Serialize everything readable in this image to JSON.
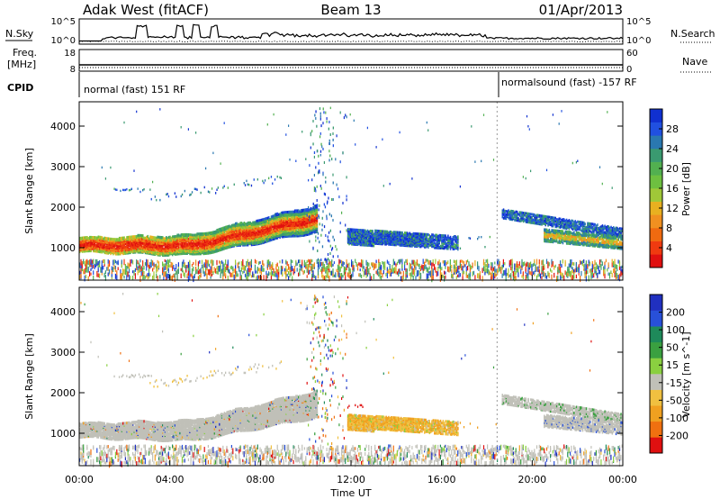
{
  "header": {
    "station": "Adak West (fitACF)",
    "beam": "Beam 13",
    "date": "01/Apr/2013"
  },
  "strip": {
    "nsky_label": "N.Sky",
    "nsearch_label": "N.Search",
    "nsky_ticks": [
      "10^5",
      "10^0"
    ],
    "freq_label": "Freq.",
    "freq_unit": "[MHz]",
    "freq_ticks": [
      "18",
      "8"
    ],
    "nave_label": "Nave",
    "nave_ticks": [
      "60",
      "0"
    ],
    "cpid_label": "CPID",
    "cpid_left": "normal (fast) 151 RF",
    "cpid_right": "normalsound (fast) -157 RF"
  },
  "chart_data": [
    {
      "type": "heatmap",
      "name": "power",
      "ylabel": "Slant Range [km]",
      "ylim": [
        200,
        4600
      ],
      "yticks": [
        1000,
        2000,
        3000,
        4000
      ],
      "colorbar_label": "Power [dB]",
      "colorbar_ticks": [
        "4",
        "8",
        "12",
        "16",
        "20",
        "24",
        "28"
      ],
      "colorscale": [
        "#1030d0",
        "#2050e0",
        "#2a78b0",
        "#3a9a70",
        "#52b050",
        "#6ec040",
        "#a0c838",
        "#e8b020",
        "#f09020",
        "#f06a10",
        "#f03a10",
        "#e01010"
      ]
    },
    {
      "type": "heatmap",
      "name": "velocity",
      "ylabel": "Slant Range [km]",
      "ylim": [
        200,
        4600
      ],
      "yticks": [
        1000,
        2000,
        3000,
        4000
      ],
      "xlabel": "Time UT",
      "xticks": [
        "00:00",
        "04:00",
        "08:00",
        "12:00",
        "16:00",
        "20:00",
        "00:00"
      ],
      "colorbar_label": "Velocity [m s^-1]",
      "colorbar_ticks": [
        "200",
        "100",
        "50",
        "15",
        "-15",
        "-50",
        "-100",
        "-200"
      ],
      "colorscale": [
        "#2030c0",
        "#2850d8",
        "#1e8a5a",
        "#3aa040",
        "#8ad040",
        "#c0c0b8",
        "#f0c040",
        "#f0a020",
        "#f07010",
        "#e01010"
      ]
    }
  ]
}
